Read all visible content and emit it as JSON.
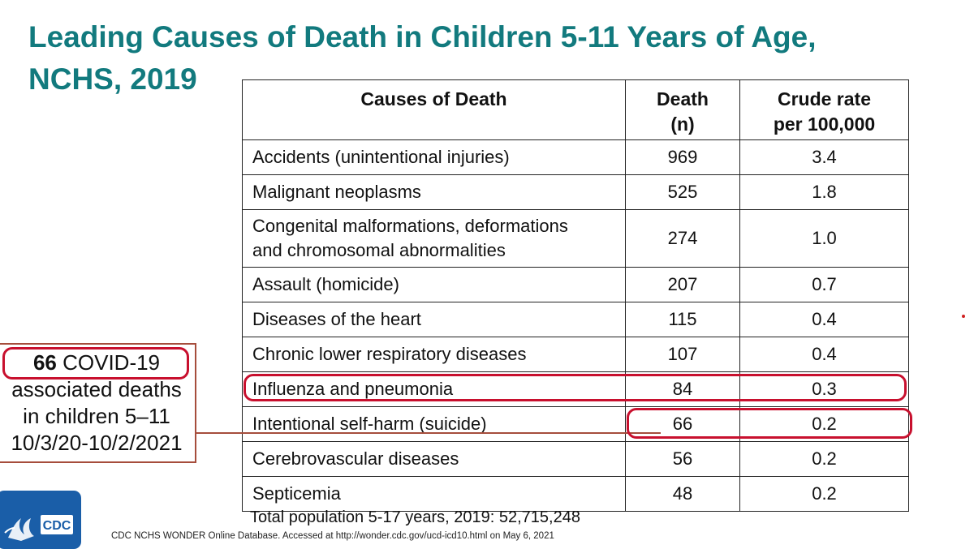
{
  "title": {
    "line1": "Leading Causes of Death in Children 5-11 Years of Age,",
    "line2": "NCHS, 2019"
  },
  "table": {
    "headers": {
      "cause": "Causes of Death",
      "deaths_line1": "Death",
      "deaths_line2": "(n)",
      "rate_line1": "Crude rate",
      "rate_line2": "per 100,000"
    },
    "rows": [
      {
        "cause": "Accidents (unintentional injuries)",
        "deaths": "969",
        "rate": "3.4"
      },
      {
        "cause": "Malignant neoplasms",
        "deaths": "525",
        "rate": "1.8"
      },
      {
        "cause_line1": "Congenital malformations, deformations",
        "cause_line2": "and chromosomal abnormalities",
        "deaths": "274",
        "rate": "1.0"
      },
      {
        "cause": "Assault (homicide)",
        "deaths": "207",
        "rate": "0.7"
      },
      {
        "cause": "Diseases of the heart",
        "deaths": "115",
        "rate": "0.4"
      },
      {
        "cause": "Chronic lower respiratory diseases",
        "deaths": "107",
        "rate": "0.4"
      },
      {
        "cause": "Influenza and pneumonia",
        "deaths": "84",
        "rate": "0.3"
      },
      {
        "cause": "Intentional self-harm (suicide)",
        "deaths": "66",
        "rate": "0.2"
      },
      {
        "cause": "Cerebrovascular diseases",
        "deaths": "56",
        "rate": "0.2"
      },
      {
        "cause": "Septicemia",
        "deaths": "48",
        "rate": "0.2"
      }
    ]
  },
  "callout": {
    "count": "66",
    "line1_rest": " COVID-19",
    "line2": "associated deaths",
    "line3": "in children 5–11",
    "line4": "10/3/20-10/2/2021"
  },
  "footer": {
    "total_population": "Total population 5-17 years, 2019: 52,715,248",
    "source": "CDC NCHS WONDER Online Database. Accessed at http://wonder.cdc.gov/ucd-icd10.html on May 6, 2021",
    "logo_text": "CDC"
  },
  "colors": {
    "title": "#127a7e",
    "highlight_ring": "#c8102e",
    "callout_border": "#a64d3c",
    "logo_blue": "#1a5ea8"
  }
}
